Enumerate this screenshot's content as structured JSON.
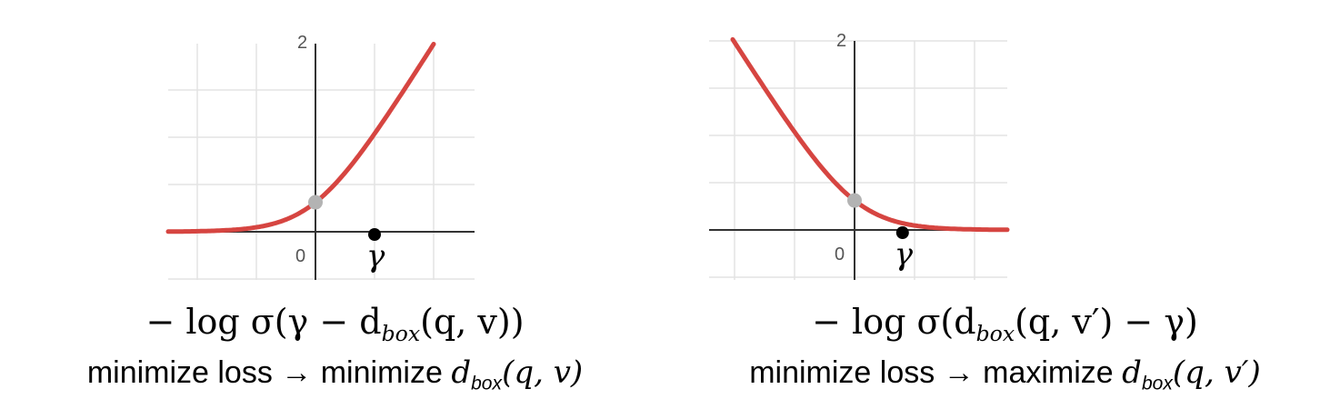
{
  "chart_data": [
    {
      "type": "line",
      "function": "-log sigmoid(x)",
      "xlim": [
        -2.5,
        2.6
      ],
      "ylim": [
        -1.0,
        4.0
      ],
      "x_tick_labels": [
        "0"
      ],
      "y_tick_labels": [
        "2"
      ],
      "grid": true,
      "line_color": "#d64541",
      "marker_gamma_x": 1.0,
      "gamma_label": "γ",
      "formula": {
        "prefix": "− log σ(γ − d",
        "sub": "box",
        "suffix": "(q, v))"
      },
      "caption": {
        "text": "minimize loss → minimize ",
        "math_main": "d",
        "math_sub": "box",
        "math_args": "(q, v)"
      }
    },
    {
      "type": "line",
      "function": "-log sigmoid(-x)",
      "xlim": [
        -2.4,
        2.6
      ],
      "ylim": [
        -1.0,
        4.0
      ],
      "x_tick_labels": [
        "0"
      ],
      "y_tick_labels": [
        "2"
      ],
      "grid": true,
      "line_color": "#d64541",
      "marker_gamma_x": 0.8,
      "gamma_label": "γ",
      "formula": {
        "prefix": "− log σ(d",
        "sub": "box",
        "suffix": "(q, v′) − γ)"
      },
      "caption": {
        "text": "minimize loss → maximize ",
        "math_main": "d",
        "math_sub": "box",
        "math_args": "(q, v′)"
      }
    }
  ]
}
